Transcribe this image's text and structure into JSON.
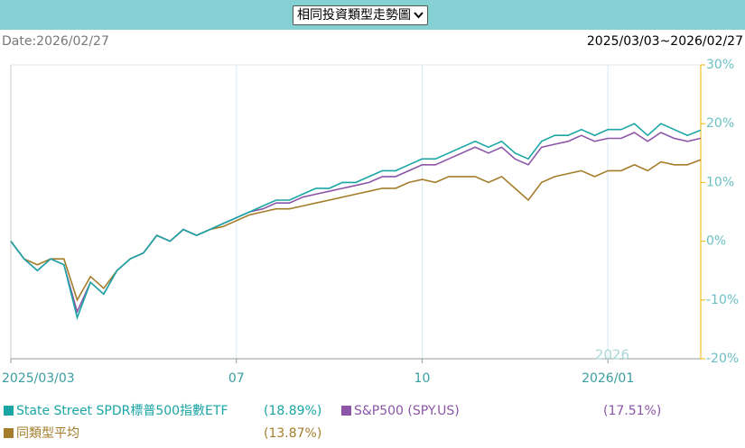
{
  "header": {
    "dropdown": "相同投資類型走勢圖",
    "date": "Date:2026/02/27",
    "range": "2025/03/03~2026/02/27"
  },
  "chart_data": {
    "type": "line",
    "categories": [
      "2025/03/03",
      null,
      null,
      null,
      null,
      null,
      null,
      null,
      null,
      null,
      null,
      null,
      null,
      null,
      null,
      null,
      null,
      "07",
      null,
      null,
      null,
      null,
      null,
      null,
      null,
      null,
      null,
      null,
      null,
      null,
      null,
      "10",
      null,
      null,
      null,
      null,
      null,
      null,
      null,
      null,
      null,
      null,
      null,
      null,
      null,
      "2026/01",
      null,
      null,
      null,
      null,
      null,
      null,
      null
    ],
    "series": [
      {
        "name": "State Street SPDR標普500指數ETF",
        "color": "#1aa5a5",
        "total_label": "(18.89%)",
        "values": [
          0,
          -3,
          -5,
          -3,
          -4,
          -13,
          -7,
          -9,
          -5,
          -3,
          -2,
          1,
          0,
          2,
          1,
          2,
          3,
          4,
          5,
          6,
          7,
          7,
          8,
          9,
          9,
          10,
          10,
          11,
          12,
          12,
          13,
          14,
          14,
          15,
          16,
          17,
          16,
          17,
          15,
          14,
          17,
          18,
          18,
          19,
          18,
          19,
          19,
          20,
          18,
          20,
          19,
          18,
          18.89
        ]
      },
      {
        "name": "S&P500 (SPY.US)",
        "color": "#8c55a8",
        "total_label": "(17.51%)",
        "values": [
          0,
          -3,
          -5,
          -3,
          -4,
          -12,
          -7,
          -9,
          -5,
          -3,
          -2,
          1,
          0,
          2,
          1,
          2,
          3,
          4,
          5,
          5.5,
          6.5,
          6.5,
          7.5,
          8,
          8.5,
          9,
          9.5,
          10,
          11,
          11,
          12,
          13,
          13,
          14,
          15,
          16,
          15,
          16,
          14,
          13,
          16,
          16.5,
          17,
          18,
          17,
          17.5,
          17.5,
          18.5,
          17,
          18.5,
          17.5,
          17,
          17.51
        ]
      },
      {
        "name": "同類型平均",
        "color": "#a57d2a",
        "total_label": "(13.87%)",
        "values": [
          0,
          -3,
          -4,
          -3,
          -3,
          -10,
          -6,
          -8,
          -5,
          -3,
          -2,
          1,
          0,
          2,
          1,
          2,
          2.5,
          3.5,
          4.5,
          5,
          5.5,
          5.5,
          6,
          6.5,
          7,
          7.5,
          8,
          8.5,
          9,
          9,
          10,
          10.5,
          10,
          11,
          11,
          11,
          10,
          11,
          9,
          7,
          10,
          11,
          11.5,
          12,
          11,
          12,
          12,
          13,
          12,
          13.5,
          13,
          13,
          13.87
        ]
      }
    ],
    "ylim": [
      -20,
      30
    ],
    "yticks": [
      {
        "value": 30,
        "label": "30%"
      },
      {
        "value": 20,
        "label": "20%"
      },
      {
        "value": 10,
        "label": "10%"
      },
      {
        "value": 0,
        "label": "0%"
      },
      {
        "value": -10,
        "label": "-10%"
      },
      {
        "value": -20,
        "label": "-20%"
      }
    ],
    "grid": "x",
    "annotations": [
      "2026"
    ]
  }
}
